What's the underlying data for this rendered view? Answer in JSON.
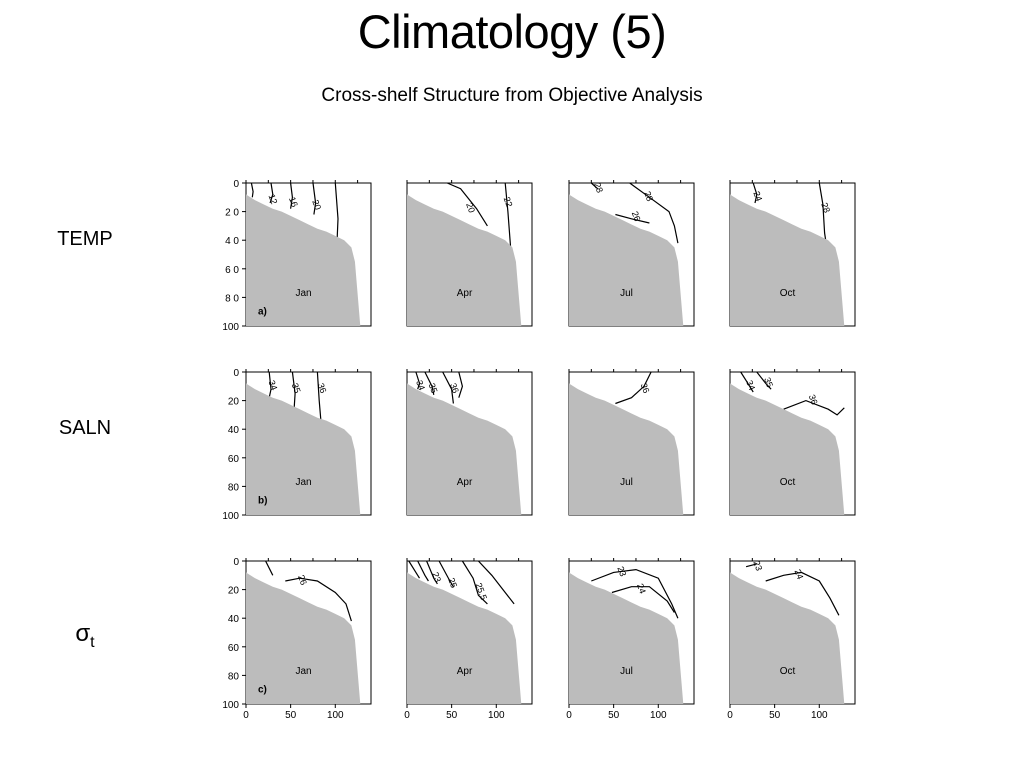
{
  "title": "Climatology (5)",
  "subtitle": "Cross-shelf Structure from Objective Analysis",
  "row_labels": [
    "TEMP",
    "SALN",
    "σt"
  ],
  "colors": {
    "topography": "#bcbcbc",
    "contour": "#000000",
    "axes": "#000000"
  },
  "chart_data": {
    "type": "contour",
    "rows": [
      {
        "variable": "TEMP",
        "panel_tag": "a)",
        "y_tick_labels": [
          "0",
          "2 0",
          "4 0",
          "6 0",
          "8 0",
          "100"
        ],
        "months": [
          "Jan",
          "Apr",
          "Jul",
          "Oct"
        ],
        "contour_labels": [
          [
            "12",
            "16",
            "20"
          ],
          [
            "20",
            "22"
          ],
          [
            "28",
            "28",
            "26"
          ],
          [
            "24",
            "28"
          ]
        ]
      },
      {
        "variable": "SALN",
        "panel_tag": "b)",
        "y_tick_labels": [
          "0",
          "20",
          "40",
          "60",
          "80",
          "100"
        ],
        "months": [
          "Jan",
          "Apr",
          "Jul",
          "Oct"
        ],
        "contour_labels": [
          [
            "34",
            "35",
            "36"
          ],
          [
            "34",
            "35",
            "36"
          ],
          [
            "36"
          ],
          [
            "34",
            "35",
            "36"
          ]
        ]
      },
      {
        "variable": "σt",
        "panel_tag": "c)",
        "y_tick_labels": [
          "0",
          "20",
          "40",
          "60",
          "80",
          "100"
        ],
        "months": [
          "Jan",
          "Apr",
          "Jul",
          "Oct"
        ],
        "contour_labels": [
          [
            "26"
          ],
          [
            "23",
            "25",
            "25.5"
          ],
          [
            "23",
            "24"
          ],
          [
            "23",
            "24"
          ]
        ]
      }
    ],
    "x_tick_labels": [
      "0",
      "50",
      "100"
    ],
    "xlim": [
      0,
      140
    ],
    "ylim": [
      0,
      100
    ],
    "y_inverted": true,
    "bathymetry_depth": [
      [
        0,
        8
      ],
      [
        10,
        12
      ],
      [
        20,
        15
      ],
      [
        30,
        18
      ],
      [
        40,
        20
      ],
      [
        50,
        23
      ],
      [
        60,
        26
      ],
      [
        70,
        29
      ],
      [
        80,
        32
      ],
      [
        90,
        34
      ],
      [
        100,
        37
      ],
      [
        110,
        40
      ],
      [
        118,
        45
      ],
      [
        122,
        55
      ],
      [
        124,
        70
      ],
      [
        126,
        85
      ],
      [
        128,
        100
      ]
    ]
  }
}
